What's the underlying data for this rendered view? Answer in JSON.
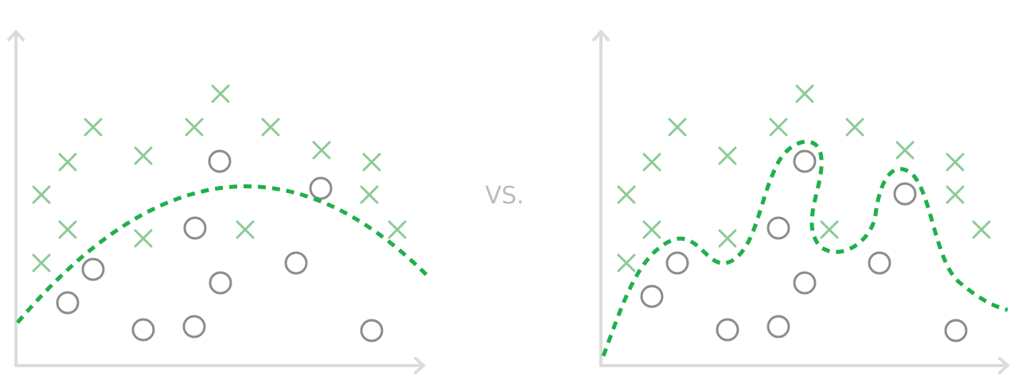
{
  "label": "VS."
}
